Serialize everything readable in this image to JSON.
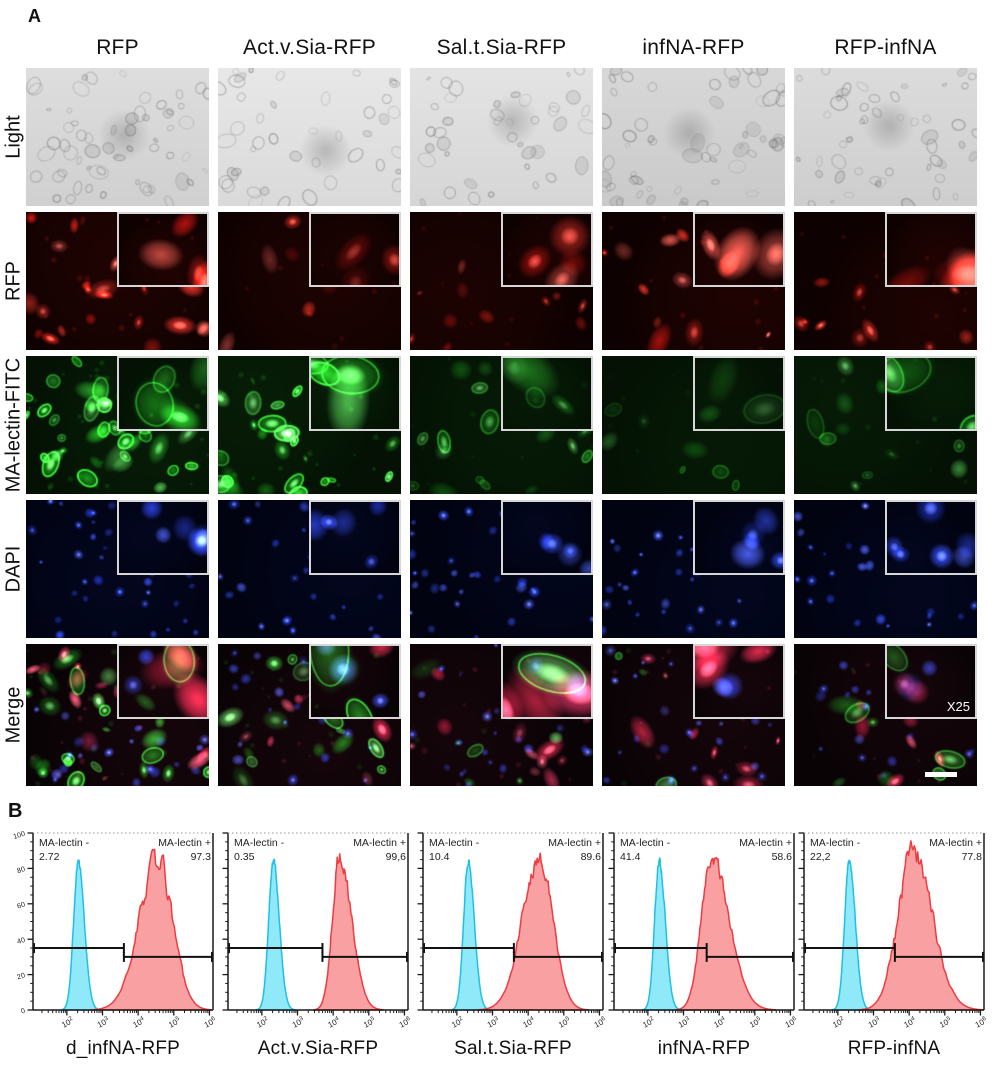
{
  "figure": {
    "panel_a_label": "A",
    "panel_b_label": "B",
    "columns": [
      "RFP",
      "Act.v.Sia-RFP",
      "Sal.t.Sia-RFP",
      "infNA-RFP",
      "RFP-infNA"
    ],
    "rows": [
      {
        "key": "light",
        "label": "Light",
        "has_inset": false
      },
      {
        "key": "rfp",
        "label": "RFP",
        "has_inset": true
      },
      {
        "key": "fitc",
        "label": "MA-lectin-FITC",
        "has_inset": true
      },
      {
        "key": "dapi",
        "label": "DAPI",
        "has_inset": true
      },
      {
        "key": "merge",
        "label": "Merge",
        "has_inset": true
      }
    ],
    "inset_magnification": "X25",
    "has_scale_bar": true,
    "cell_density": {
      "light": {
        "shade": [
          214,
          224,
          220,
          208,
          212
        ],
        "n": [
          60,
          42,
          40,
          58,
          50
        ]
      },
      "rfp": {
        "main_n": [
          26,
          9,
          14,
          13,
          14
        ],
        "main_b": [
          1,
          0.7,
          0.6,
          0.85,
          0.8
        ],
        "inset_n": [
          4,
          3,
          4,
          4,
          4
        ],
        "inset_b": [
          1,
          0.55,
          0.7,
          1,
          0.95
        ]
      },
      "fitc": {
        "main_n": [
          40,
          30,
          18,
          10,
          16
        ],
        "main_b": [
          0.95,
          1,
          0.5,
          0.3,
          0.5
        ],
        "inset_n": [
          5,
          4,
          4,
          3,
          3
        ],
        "inset_b": [
          1,
          1,
          0.45,
          0.3,
          0.9
        ]
      },
      "dapi": {
        "main_n": [
          46,
          30,
          36,
          28,
          34
        ],
        "main_b": [
          0.8,
          0.75,
          0.8,
          0.75,
          0.8
        ],
        "inset_n": [
          6,
          5,
          5,
          5,
          6
        ],
        "inset_b": [
          0.85,
          0.8,
          0.8,
          0.8,
          0.85
        ]
      },
      "merge": {
        "main_rgb": [
          [
            18,
            22,
            26
          ],
          [
            8,
            20,
            24
          ],
          [
            14,
            8,
            28
          ],
          [
            12,
            5,
            26
          ],
          [
            10,
            10,
            28
          ]
        ],
        "main_b": [
          1,
          0.85,
          0.8,
          0.8,
          0.8
        ],
        "inset_rgb": [
          [
            3,
            2,
            2
          ],
          [
            1,
            3,
            3
          ],
          [
            3,
            1,
            2
          ],
          [
            3,
            0,
            2
          ],
          [
            2,
            1,
            2
          ]
        ],
        "inset_b": [
          1,
          1,
          0.9,
          1,
          0.95
        ]
      }
    }
  },
  "chart_data": [
    {
      "type": "area",
      "title": "d_infNA-RFP",
      "x_axis": {
        "scale": "log",
        "tick_exponents": [
          2,
          3,
          4,
          5,
          6
        ],
        "range_log": [
          1.05,
          6.1
        ]
      },
      "y_axis": {
        "ticks": [
          0,
          20,
          40,
          60,
          80,
          100
        ],
        "range": [
          0,
          100
        ],
        "show_tick_labels": true
      },
      "annotations": {
        "neg_label": "MA-lectin -",
        "neg_value": "2.72",
        "pos_label": "MA-lectin +",
        "pos_value": "97.3"
      },
      "series": [
        {
          "name": "MA-lectin -",
          "percent": "2.72",
          "peak_log": 2.32,
          "sigma_left": 0.13,
          "sigma_right": 0.17,
          "peak_height": 84,
          "jag": 0.05
        },
        {
          "name": "MA-lectin +",
          "percent": "97.3",
          "peak_log": 4.55,
          "sigma_left": 0.52,
          "sigma_right": 0.42,
          "peak_height": 84,
          "jag": 0.16
        }
      ],
      "gates": {
        "split_log": 3.6,
        "neg_gate_y": 35,
        "pos_gate_y": 30
      }
    },
    {
      "type": "area",
      "title": "Act.v.Sia-RFP",
      "x_axis": {
        "scale": "log",
        "tick_exponents": [
          2,
          3,
          4,
          5,
          6
        ],
        "range_log": [
          1.05,
          6.1
        ]
      },
      "y_axis": {
        "ticks": [
          0,
          20,
          40,
          60,
          80,
          100
        ],
        "range": [
          0,
          100
        ],
        "show_tick_labels": false
      },
      "annotations": {
        "neg_label": "MA-lectin -",
        "neg_value": "0.35",
        "pos_label": "MA-lectin +",
        "pos_value": "99,6"
      },
      "series": [
        {
          "name": "MA-lectin -",
          "percent": "0.35",
          "peak_log": 2.32,
          "sigma_left": 0.13,
          "sigma_right": 0.17,
          "peak_height": 84,
          "jag": 0.05
        },
        {
          "name": "MA-lectin +",
          "percent": "99,6",
          "peak_log": 4.18,
          "sigma_left": 0.2,
          "sigma_right": 0.34,
          "peak_height": 87,
          "jag": 0.1
        }
      ],
      "gates": {
        "split_log": 3.7,
        "neg_gate_y": 35,
        "pos_gate_y": 30
      }
    },
    {
      "type": "area",
      "title": "Sal.t.Sia-RFP",
      "x_axis": {
        "scale": "log",
        "tick_exponents": [
          2,
          3,
          4,
          5,
          6
        ],
        "range_log": [
          1.05,
          6.1
        ]
      },
      "y_axis": {
        "ticks": [
          0,
          20,
          40,
          60,
          80,
          100
        ],
        "range": [
          0,
          100
        ],
        "show_tick_labels": false
      },
      "annotations": {
        "neg_label": "MA-lectin -",
        "neg_value": "10.4",
        "pos_label": "MA-lectin +",
        "pos_value": "89.6"
      },
      "series": [
        {
          "name": "MA-lectin -",
          "percent": "10.4",
          "peak_log": 2.32,
          "sigma_left": 0.13,
          "sigma_right": 0.17,
          "peak_height": 84,
          "jag": 0.05
        },
        {
          "name": "MA-lectin +",
          "percent": "89.6",
          "peak_log": 4.32,
          "sigma_left": 0.48,
          "sigma_right": 0.38,
          "peak_height": 86,
          "jag": 0.12
        }
      ],
      "gates": {
        "split_log": 3.6,
        "neg_gate_y": 35,
        "pos_gate_y": 30
      }
    },
    {
      "type": "area",
      "title": "infNA-RFP",
      "x_axis": {
        "scale": "log",
        "tick_exponents": [
          2,
          3,
          4,
          5,
          6
        ],
        "range_log": [
          1.05,
          6.1
        ]
      },
      "y_axis": {
        "ticks": [
          0,
          20,
          40,
          60,
          80,
          100
        ],
        "range": [
          0,
          100
        ],
        "show_tick_labels": false
      },
      "annotations": {
        "neg_label": "MA-lectin -",
        "neg_value": "41.4",
        "pos_label": "MA-lectin +",
        "pos_value": "58.6"
      },
      "series": [
        {
          "name": "MA-lectin -",
          "percent": "41.4",
          "peak_log": 2.32,
          "sigma_left": 0.13,
          "sigma_right": 0.17,
          "peak_height": 84,
          "jag": 0.05
        },
        {
          "name": "MA-lectin +",
          "percent": "58.6",
          "peak_log": 3.78,
          "sigma_left": 0.28,
          "sigma_right": 0.5,
          "peak_height": 86,
          "jag": 0.1
        }
      ],
      "gates": {
        "split_log": 3.65,
        "neg_gate_y": 35,
        "pos_gate_y": 30
      }
    },
    {
      "type": "area",
      "title": "RFP-infNA",
      "x_axis": {
        "scale": "log",
        "tick_exponents": [
          2,
          3,
          4,
          5,
          6
        ],
        "range_log": [
          1.05,
          6.1
        ]
      },
      "y_axis": {
        "ticks": [
          0,
          20,
          40,
          60,
          80,
          100
        ],
        "range": [
          0,
          100
        ],
        "show_tick_labels": false
      },
      "annotations": {
        "neg_label": "MA-lectin -",
        "neg_value": "22,2",
        "pos_label": "MA-lectin +",
        "pos_value": "77.8"
      },
      "series": [
        {
          "name": "MA-lectin -",
          "percent": "22,2",
          "peak_log": 2.32,
          "sigma_left": 0.13,
          "sigma_right": 0.17,
          "peak_height": 84,
          "jag": 0.05
        },
        {
          "name": "MA-lectin +",
          "percent": "77.8",
          "peak_log": 4.1,
          "sigma_left": 0.42,
          "sigma_right": 0.55,
          "peak_height": 86,
          "jag": 0.18
        }
      ],
      "gates": {
        "split_log": 3.6,
        "neg_gate_y": 35,
        "pos_gate_y": 30
      }
    }
  ],
  "colors": {
    "flow_neg_fill": "#8FE9F9",
    "flow_neg_stroke": "#1FC0E4",
    "flow_pos_fill": "#F9A0A2",
    "flow_pos_stroke": "#EF3B40",
    "gate": "#111111",
    "frame": "#1a1a1a"
  }
}
